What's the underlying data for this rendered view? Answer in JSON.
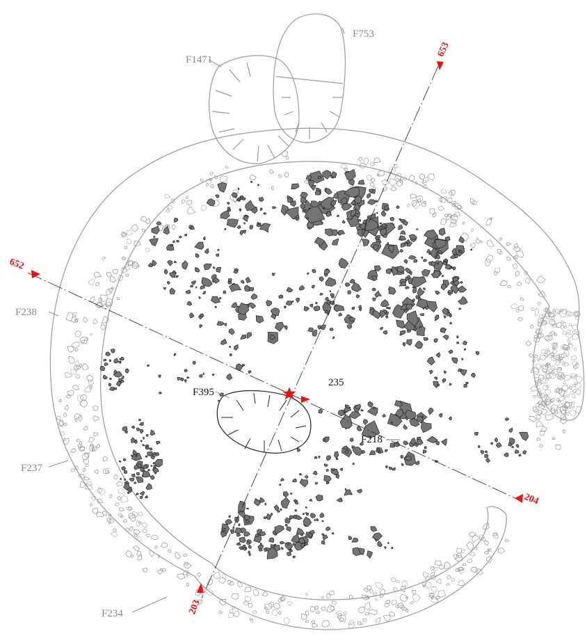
{
  "colors": {
    "stone_fill": "#747474",
    "outline": "#9a9a9a",
    "label_grey": "#888888",
    "label_black": "#111111",
    "section_marker": "#ee1111"
  },
  "labels": {
    "f753": "F753",
    "f1471": "F1471",
    "f238": "F238",
    "f237": "F237",
    "f234": "F234",
    "f395": "F395",
    "f218": "F218",
    "context_235": "235"
  },
  "section_markers": {
    "s652": "652",
    "s653": "653",
    "s204": "204",
    "s203": "203"
  },
  "icons": {
    "datum": "datum-star-icon",
    "arrow": "section-arrow-icon"
  }
}
